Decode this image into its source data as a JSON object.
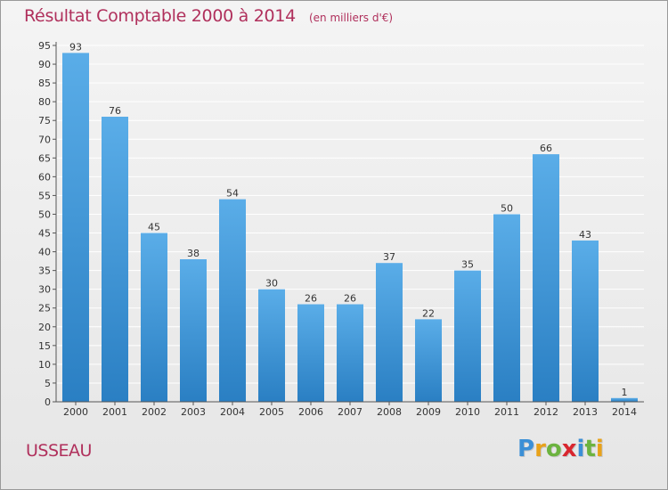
{
  "header": {
    "title": "Résultat Comptable 2000 à 2014",
    "subtitle": "(en milliers d'€)"
  },
  "footer": {
    "town": "USSEAU",
    "brand": "Proxiti",
    "brand_letters": [
      {
        "ch": "P",
        "color": "#3b8fd6"
      },
      {
        "ch": "r",
        "color": "#e8a21a"
      },
      {
        "ch": "o",
        "color": "#6cb33f"
      },
      {
        "ch": "x",
        "color": "#d8262f"
      },
      {
        "ch": "i",
        "color": "#3b8fd6"
      },
      {
        "ch": "t",
        "color": "#6cb33f"
      },
      {
        "ch": "i",
        "color": "#e8a21a"
      }
    ]
  },
  "colors": {
    "bar_top": "#5aade8",
    "bar_bottom": "#2a7fc3",
    "grid": "#ffffff",
    "axis": "#555555"
  },
  "chart_data": {
    "type": "bar",
    "title": "Résultat Comptable 2000 à 2014",
    "subtitle": "(en milliers d'€)",
    "xlabel": "",
    "ylabel": "",
    "categories": [
      "2000",
      "2001",
      "2002",
      "2003",
      "2004",
      "2005",
      "2006",
      "2007",
      "2008",
      "2009",
      "2010",
      "2011",
      "2012",
      "2013",
      "2014"
    ],
    "values": [
      93,
      76,
      45,
      38,
      54,
      30,
      26,
      26,
      37,
      22,
      35,
      50,
      66,
      43,
      1
    ],
    "ylim": [
      0,
      95
    ],
    "yticks": [
      0,
      5,
      10,
      15,
      20,
      25,
      30,
      35,
      40,
      45,
      50,
      55,
      60,
      65,
      70,
      75,
      80,
      85,
      90,
      95
    ],
    "grid": true,
    "legend": "none",
    "data_labels": true
  }
}
